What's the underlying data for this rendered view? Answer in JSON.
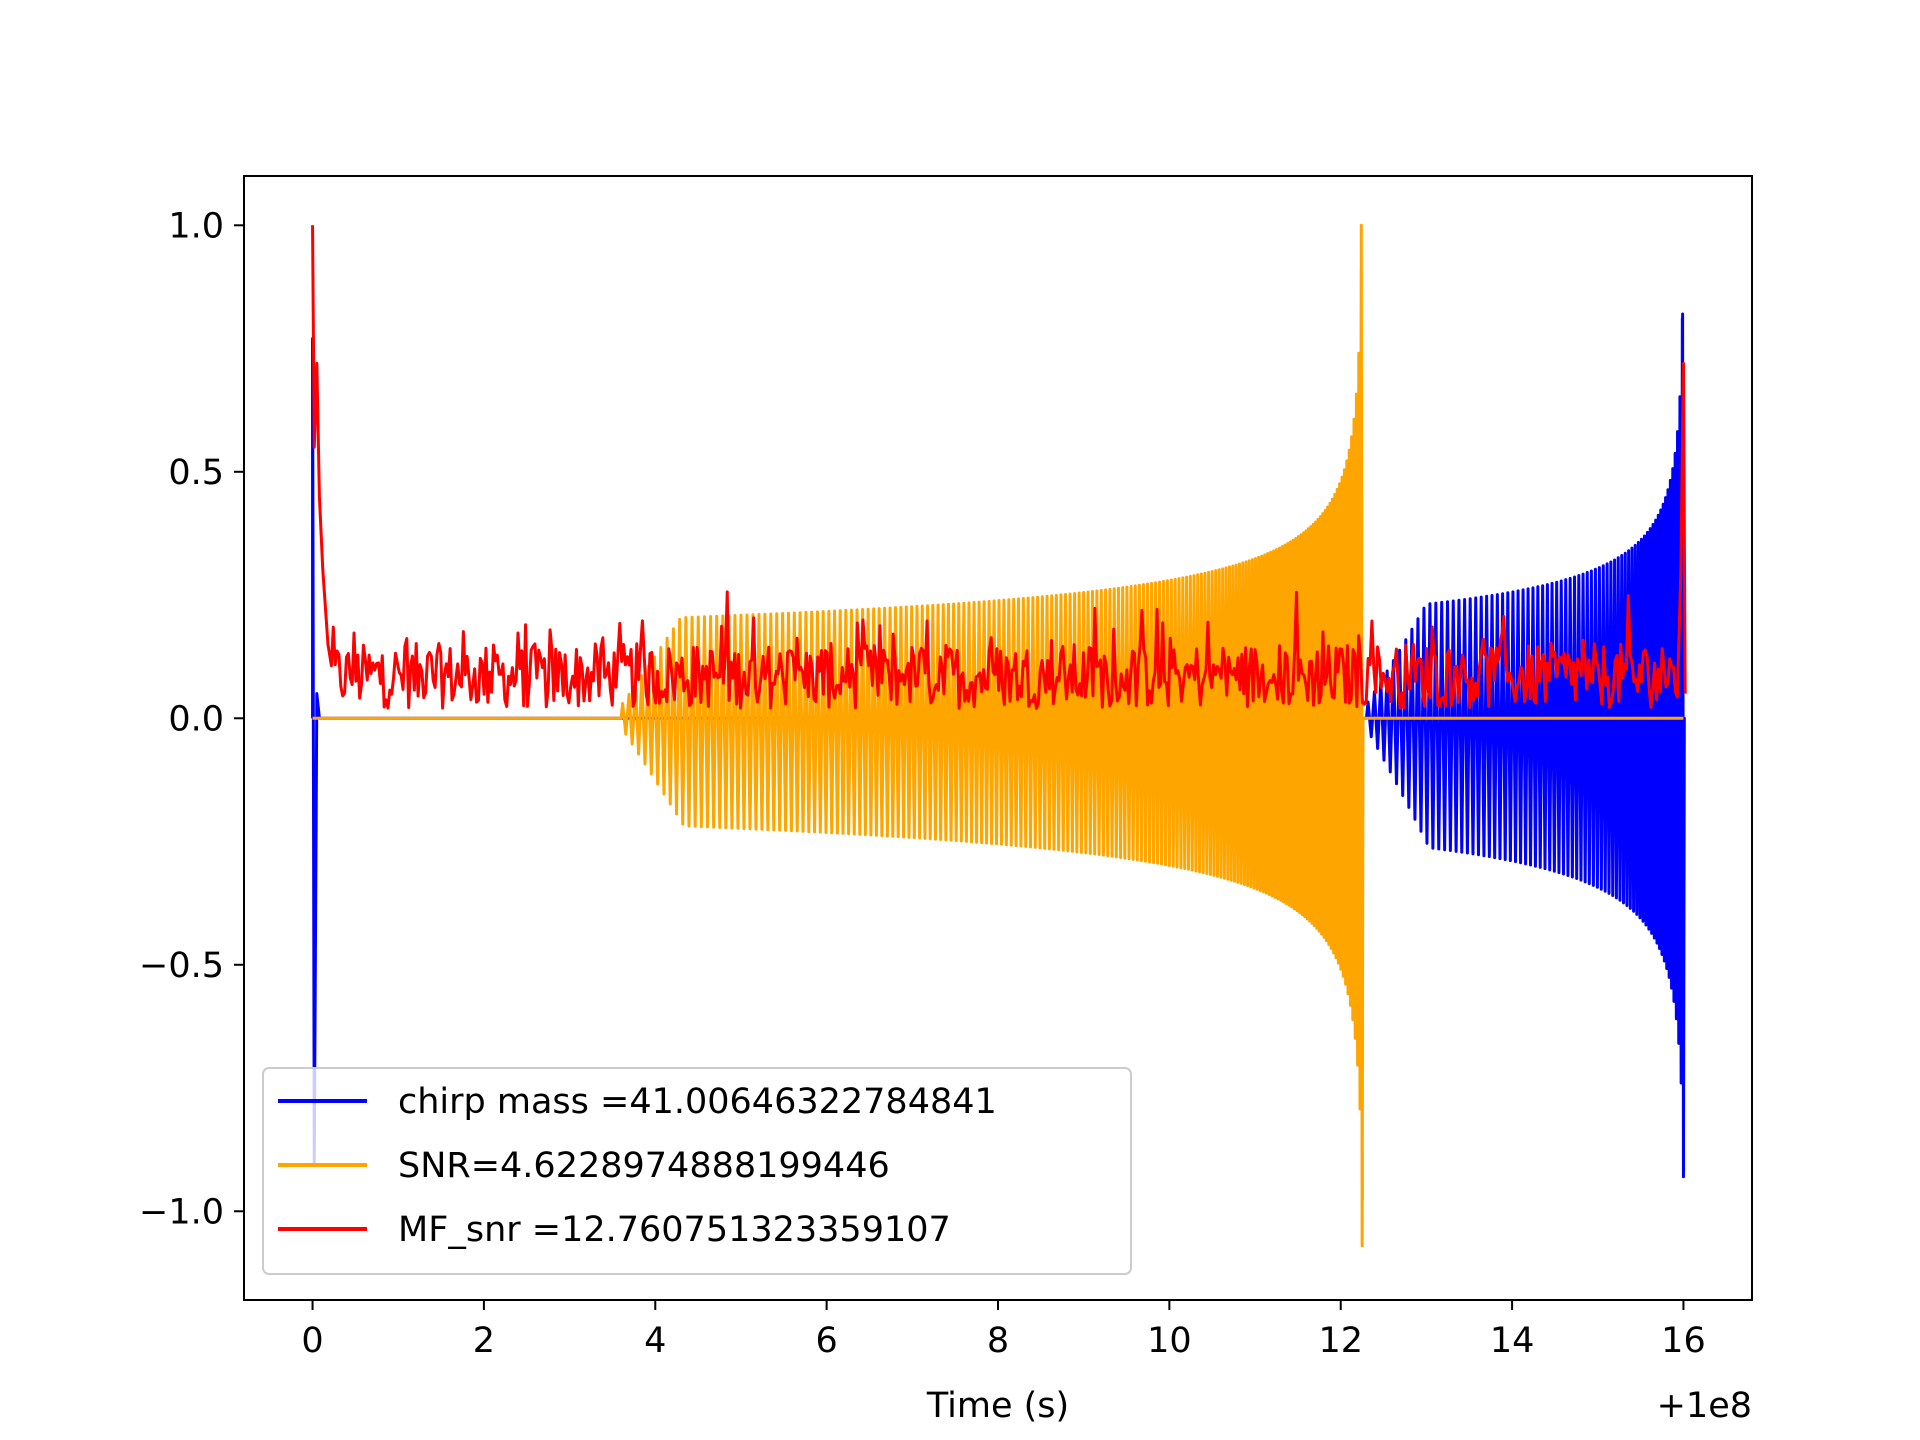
{
  "chart_data": {
    "type": "line",
    "title": "",
    "xlabel": "Time (s)",
    "ylabel": "",
    "x_offset_label": "+1e8",
    "xlim": [
      -0.8,
      16.8
    ],
    "ylim": [
      -1.18,
      1.1
    ],
    "xticks": [
      0,
      2,
      4,
      6,
      8,
      10,
      12,
      14,
      16
    ],
    "xtick_labels": [
      "0",
      "2",
      "4",
      "6",
      "8",
      "10",
      "12",
      "14",
      "16"
    ],
    "yticks": [
      1.0,
      0.5,
      0.0,
      -0.5,
      -1.0
    ],
    "ytick_labels": [
      "1.0",
      "0.5",
      "0.0",
      "−0.5",
      "−1.0"
    ],
    "grid": false,
    "legend_position": "lower-left",
    "series": [
      {
        "name": "chirp mass =41.00646322784841",
        "color": "#0000ff",
        "description": "chirp waveform, signal window 12.3 to 16.0 s, amplitude 0.22 to 0.82, minimum -0.93 at 16.0; initial spike at 0 reaching 0.77 and -0.9",
        "signal_start": 12.3,
        "merger_time": 16.0,
        "peak_max": 0.82,
        "peak_min": -0.93,
        "amplitude_start": 0.22
      },
      {
        "name": "SNR=4.6228974888199446",
        "color": "#ffa500",
        "description": "chirp waveform, signal window 3.6 to 12.25 s, amplitude 0.2 to 1.0, minimum -1.07 at 12.25",
        "signal_start": 3.6,
        "merger_time": 12.25,
        "peak_max": 1.0,
        "peak_min": -1.07,
        "amplitude_start": 0.2
      },
      {
        "name": "MF_snr =12.760751323359107",
        "color": "#ff0000",
        "description": "noisy matched-filter output between 0 and ~0.24, peak 1.0 at t=0 and 0.72 at t=16",
        "baseline_high": 0.24,
        "peaks": [
          {
            "x": 0.0,
            "y": 1.0
          },
          {
            "x": 16.0,
            "y": 0.72
          }
        ]
      }
    ]
  }
}
